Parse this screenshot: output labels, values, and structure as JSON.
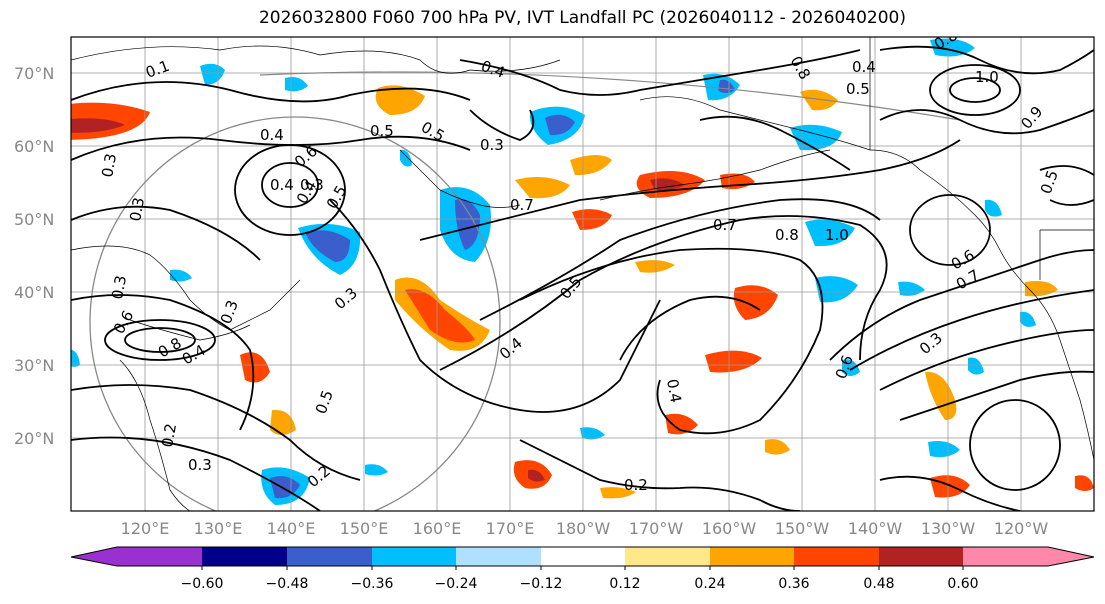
{
  "title": "2026032800 F060 700 hPa PV, IVT Landfall PC (2026040112 - 2026040200)",
  "lat_labels": [
    "70°N",
    "60°N",
    "50°N",
    "40°N",
    "30°N",
    "20°N"
  ],
  "lon_labels": [
    "120°E",
    "130°E",
    "140°E",
    "150°E",
    "160°E",
    "170°E",
    "180°W",
    "170°W",
    "160°W",
    "150°W",
    "140°W",
    "130°W",
    "120°W"
  ],
  "colorbar": {
    "ticks": [
      "−0.60",
      "−0.48",
      "−0.36",
      "−0.24",
      "−0.12",
      "0.12",
      "0.24",
      "0.36",
      "0.48",
      "0.60"
    ],
    "colors": [
      "#9b30d0",
      "#00008b",
      "#3a5fcd",
      "#00bfff",
      "#b0e0ff",
      "#ffffff",
      "#ffe88a",
      "#ffa500",
      "#ff4500",
      "#b22222",
      "#ff88aa"
    ]
  },
  "contour_labels": [
    "0.1",
    "0.4",
    "0.5",
    "0.3",
    "0.4",
    "0.3",
    "0.5",
    "0.3",
    "0.4",
    "0.6",
    "0.4",
    "0.3",
    "0.5",
    "0.7",
    "0.7",
    "0.8",
    "1.0",
    "0.6",
    "0.7",
    "0.5",
    "0.4",
    "0.3",
    "0.3",
    "0.6",
    "0.8",
    "0.4",
    "0.3",
    "0.2",
    "0.5",
    "0.6",
    "0.3",
    "0.2",
    "0.3",
    "0.4",
    "0.2",
    "0.8",
    "0.4",
    "0.5",
    "1.0",
    "0.9",
    "0.8",
    "0.5"
  ]
}
